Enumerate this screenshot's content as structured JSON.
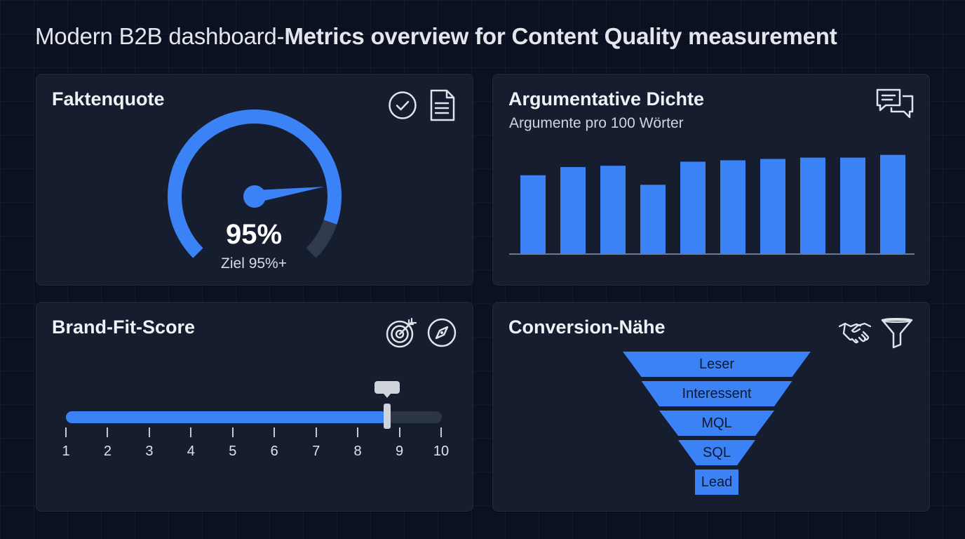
{
  "page": {
    "title_light": "Modern B2B dashboard-",
    "title_bold": "Metrics overview for Content Quality measurement"
  },
  "colors": {
    "background": "#0b1120",
    "card": "#151d2e",
    "accent": "#3b82f6",
    "track": "#2c3546",
    "handle": "#cfd3da"
  },
  "faktenquote": {
    "title": "Faktenquote",
    "value_label": "95%",
    "target_label": "Ziel 95%+",
    "value_fraction": 0.95,
    "icons": [
      "check-circle-icon",
      "document-icon"
    ]
  },
  "argumentative_dichte": {
    "title": "Argumentative Dichte",
    "subtitle": "Argumente pro 100 Wörter",
    "icons": [
      "chat-bubbles-icon"
    ]
  },
  "chart_data": {
    "type": "bar",
    "title": "Argumentative Dichte",
    "subtitle": "Argumente pro 100 Wörter",
    "categories": [
      "",
      "",
      "",
      "",
      "",
      "",
      "",
      "",
      "",
      ""
    ],
    "values": [
      5.8,
      6.4,
      6.5,
      5.1,
      6.8,
      6.9,
      7.0,
      7.1,
      7.1,
      7.3
    ],
    "ylim": [
      0,
      7.8
    ],
    "xlabel": "",
    "ylabel": "",
    "grid": false,
    "axes_labels_shown": false,
    "bar_color": "#3b82f6"
  },
  "brand_fit": {
    "title": "Brand-Fit-Score",
    "value": 8.7,
    "min": 1,
    "max": 10,
    "ticks": [
      "1",
      "2",
      "3",
      "4",
      "5",
      "6",
      "7",
      "8",
      "9",
      "10"
    ],
    "icons": [
      "target-icon",
      "compass-icon"
    ]
  },
  "conversion": {
    "title": "Conversion-Nähe",
    "stages": [
      "Leser",
      "Interessent",
      "MQL",
      "SQL",
      "Lead"
    ],
    "icons": [
      "handshake-icon",
      "funnel-icon"
    ]
  }
}
